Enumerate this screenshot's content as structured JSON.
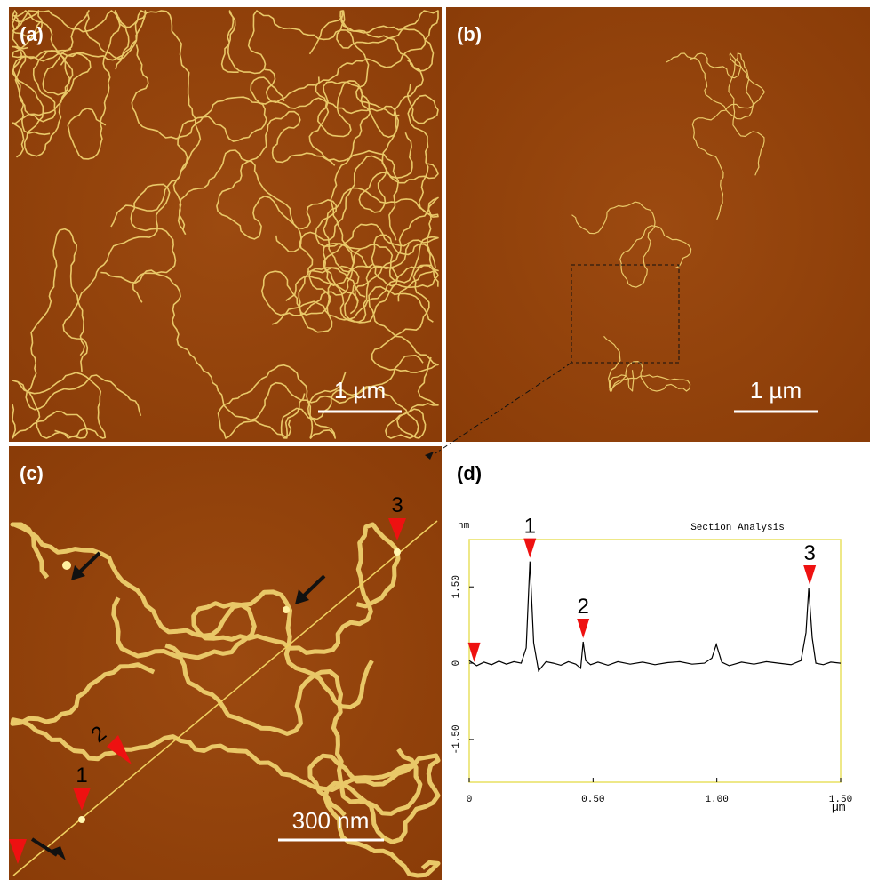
{
  "panel_labels": [
    "(a)",
    "(b)",
    "(c)",
    "(d)"
  ],
  "scale_bars": [
    "1 µm",
    "1 µm",
    "300 nm"
  ],
  "image_c_markers": [
    "1",
    "2",
    "3"
  ],
  "chart_data": {
    "type": "line",
    "title": "Section Analysis",
    "xlabel": "µm",
    "ylabel": "nm",
    "x": [
      0,
      0.03,
      0.06,
      0.09,
      0.12,
      0.15,
      0.18,
      0.21,
      0.23,
      0.245,
      0.26,
      0.28,
      0.31,
      0.34,
      0.37,
      0.4,
      0.43,
      0.45,
      0.46,
      0.47,
      0.49,
      0.52,
      0.56,
      0.6,
      0.65,
      0.7,
      0.75,
      0.8,
      0.85,
      0.9,
      0.95,
      0.98,
      0.998,
      1.02,
      1.05,
      1.1,
      1.15,
      1.2,
      1.25,
      1.3,
      1.34,
      1.36,
      1.371,
      1.385,
      1.4,
      1.43,
      1.46,
      1.5
    ],
    "values": [
      0.05,
      -0.05,
      0.02,
      -0.03,
      0.04,
      -0.02,
      0.03,
      0.0,
      0.3,
      2.0,
      0.4,
      -0.15,
      0.03,
      0.0,
      -0.04,
      0.03,
      -0.02,
      -0.1,
      0.42,
      0.05,
      -0.03,
      0.02,
      -0.04,
      0.03,
      -0.02,
      0.02,
      -0.03,
      0.01,
      0.03,
      -0.02,
      0.0,
      0.1,
      0.37,
      0.02,
      -0.05,
      0.02,
      -0.02,
      0.03,
      0.0,
      -0.03,
      0.05,
      0.6,
      1.47,
      0.5,
      0.0,
      -0.03,
      0.02,
      0.0
    ],
    "color": "#000000",
    "frame_color": "#e8e060",
    "markers_x": [
      0.02,
      0.245,
      0.46,
      1.375
    ],
    "marker_labels": [
      null,
      "1",
      "2",
      "3"
    ],
    "marker_color": "#ee1111",
    "xlim": [
      0,
      1.5
    ],
    "ylim": [
      -2.34,
      2.43
    ],
    "xticks": [
      0,
      {
        "value": 0.5,
        "label": "0.50"
      },
      {
        "value": 1,
        "label": "1.00"
      },
      {
        "value": 1.5,
        "label": "1.50"
      }
    ],
    "yticks": [
      {
        "value": 1.5,
        "label": "1.50"
      },
      0,
      {
        "value": -1.5,
        "label": "-1.50"
      }
    ]
  }
}
